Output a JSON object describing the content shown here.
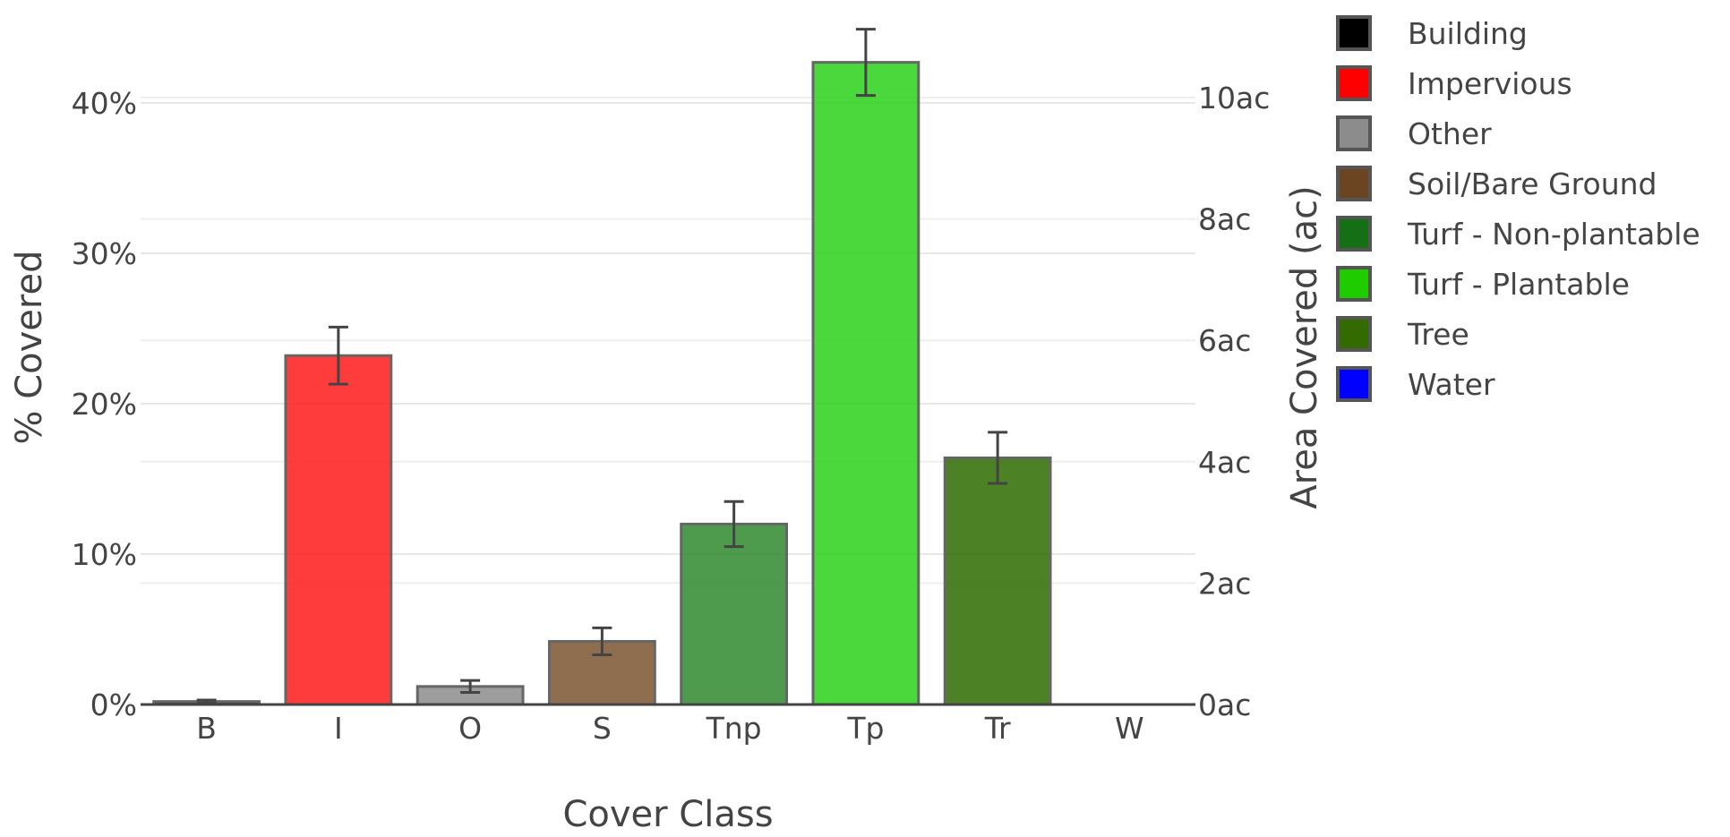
{
  "chart_data": {
    "type": "bar",
    "xlabel": "Cover Class",
    "ylabel": "% Covered",
    "y2label": "Area Covered (ac)",
    "categories": [
      "B",
      "I",
      "O",
      "S",
      "Tnp",
      "Tp",
      "Tr",
      "W"
    ],
    "values": [
      0.2,
      23.2,
      1.2,
      4.2,
      12.0,
      42.7,
      16.4,
      0.0
    ],
    "error": [
      0.1,
      1.9,
      0.4,
      0.9,
      1.5,
      2.2,
      1.7,
      0.0
    ],
    "colors": [
      "#1a1a1a",
      "#ff1a1a",
      "#8c8c8c",
      "#7a5530",
      "#2f8a2f",
      "#2ad11a",
      "#2e6b00",
      "#0000ff"
    ],
    "ylim": [
      0,
      45
    ],
    "yticks": [
      0,
      10,
      20,
      30,
      40
    ],
    "yticklabels": [
      "0%",
      "10%",
      "20%",
      "30%",
      "40%"
    ],
    "y2lim": [
      0,
      11.22
    ],
    "y2ticks": [
      0,
      2,
      4,
      6,
      8,
      10
    ],
    "y2ticklabels": [
      "0ac",
      "2ac",
      "4ac",
      "6ac",
      "8ac",
      "10ac"
    ],
    "grid": true,
    "legend_position": "right",
    "legend": [
      {
        "label": "Building",
        "color": "#000000"
      },
      {
        "label": "Impervious",
        "color": "#ff0000"
      },
      {
        "label": "Other",
        "color": "#8c8c8c"
      },
      {
        "label": "Soil/Bare Ground",
        "color": "#6b4422"
      },
      {
        "label": "Turf - Non-plantable",
        "color": "#157015"
      },
      {
        "label": "Turf - Plantable",
        "color": "#1fcc00"
      },
      {
        "label": "Tree",
        "color": "#336b00"
      },
      {
        "label": "Water",
        "color": "#0000ff"
      }
    ]
  }
}
